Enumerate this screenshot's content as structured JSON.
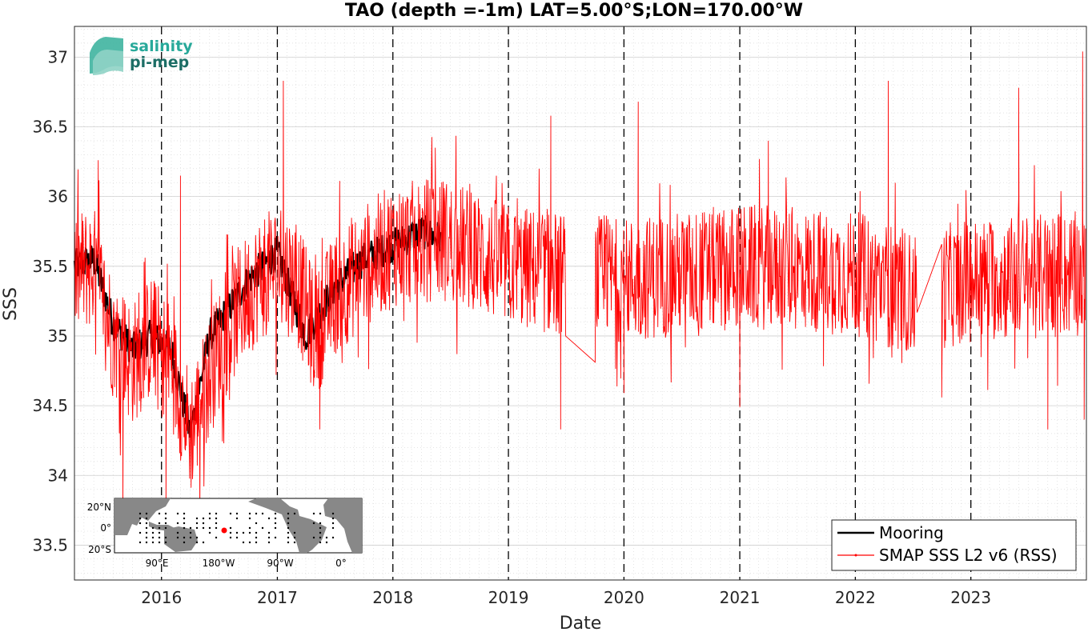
{
  "chart_data": {
    "type": "line",
    "title": "TAO (depth =-1m) LAT=5.00°S;LON=170.00°W",
    "xlabel": "Date",
    "ylabel": "SSS",
    "xlim": [
      "2015-04-01",
      "2024-01-01"
    ],
    "ylim": [
      33.25,
      37.22
    ],
    "x_ticks": [
      "2016",
      "2017",
      "2018",
      "2019",
      "2020",
      "2021",
      "2022",
      "2023"
    ],
    "y_ticks": [
      "33.5",
      "34",
      "34.5",
      "35",
      "35.5",
      "36",
      "36.5",
      "37"
    ],
    "grid": true,
    "year_markers": "dashed vertical lines at each Jan 1",
    "legend_position": "bottom-right",
    "series": [
      {
        "name": "Mooring",
        "color": "#000000",
        "note_points": [
          [
            "2015-04-01",
            35.5
          ],
          [
            "2015-06-01",
            35.55
          ],
          [
            "2015-08-01",
            35.1
          ],
          [
            "2015-10-01",
            34.9
          ],
          [
            "2015-12-01",
            35.0
          ],
          [
            "2016-02-01",
            34.9
          ],
          [
            "2016-04-01",
            34.3
          ],
          [
            "2016-06-01",
            35.0
          ],
          [
            "2016-08-01",
            35.2
          ],
          [
            "2016-10-01",
            35.4
          ],
          [
            "2017-01-01",
            35.6
          ],
          [
            "2017-04-01",
            35.0
          ],
          [
            "2017-07-01",
            35.35
          ],
          [
            "2017-10-01",
            35.55
          ],
          [
            "2018-01-01",
            35.65
          ],
          [
            "2018-04-01",
            35.75
          ],
          [
            "2018-06-01",
            35.7
          ]
        ]
      },
      {
        "name": "SMAP SSS L2 v6 (RSS)",
        "color": "#ff0000",
        "anchor_points": [
          [
            "2015-04-01",
            35.45
          ],
          [
            "2015-06-01",
            35.5
          ],
          [
            "2015-08-01",
            35.0
          ],
          [
            "2015-10-01",
            34.8
          ],
          [
            "2015-12-01",
            35.0
          ],
          [
            "2016-02-01",
            34.8
          ],
          [
            "2016-04-01",
            34.3
          ],
          [
            "2016-05-15",
            34.6
          ],
          [
            "2016-07-01",
            34.9
          ],
          [
            "2016-09-01",
            35.2
          ],
          [
            "2016-11-01",
            35.4
          ],
          [
            "2017-01-01",
            35.5
          ],
          [
            "2017-03-01",
            35.4
          ],
          [
            "2017-05-01",
            35.0
          ],
          [
            "2017-07-01",
            35.3
          ],
          [
            "2017-10-01",
            35.5
          ],
          [
            "2018-01-01",
            35.65
          ],
          [
            "2018-06-01",
            35.7
          ],
          [
            "2019-01-01",
            35.5
          ],
          [
            "2019-06-01",
            35.45
          ],
          [
            "2020-01-01",
            35.4
          ],
          [
            "2021-01-01",
            35.5
          ],
          [
            "2022-01-01",
            35.45
          ],
          [
            "2022-07-01",
            35.3
          ],
          [
            "2023-01-01",
            35.4
          ],
          [
            "2023-12-31",
            35.45
          ]
        ],
        "spikes": [
          [
            "2015-06-15",
            36.26
          ],
          [
            "2015-09-01",
            33.75
          ],
          [
            "2016-01-15",
            33.7
          ],
          [
            "2016-03-01",
            36.15
          ],
          [
            "2016-05-01",
            33.7
          ],
          [
            "2017-01-20",
            36.83
          ],
          [
            "2017-05-15",
            34.33
          ],
          [
            "2018-05-15",
            36.35
          ],
          [
            "2019-05-15",
            36.58
          ],
          [
            "2019-06-15",
            34.33
          ],
          [
            "2020-02-15",
            36.68
          ],
          [
            "2020-01-01",
            34.59
          ],
          [
            "2021-01-01",
            34.49
          ],
          [
            "2021-04-01",
            36.4
          ],
          [
            "2022-04-15",
            36.83
          ],
          [
            "2022-07-01",
            35.02
          ],
          [
            "2022-10-01",
            34.56
          ],
          [
            "2023-06-01",
            36.78
          ],
          [
            "2023-09-01",
            34.33
          ],
          [
            "2023-12-20",
            37.04
          ],
          [
            "2023-12-25",
            34.4
          ]
        ],
        "gaps": [
          [
            "2019-07-01",
            "2019-10-01"
          ],
          [
            "2022-07-15",
            "2022-10-01"
          ]
        ]
      }
    ]
  },
  "logo": {
    "line1": "salinity",
    "line2": "pi-mep"
  },
  "inset_map": {
    "ylabels": [
      "20°N",
      "0°",
      "20°S"
    ],
    "xlabels": [
      "90°E",
      "180°W",
      "90°W",
      "0°"
    ],
    "marker_color": "#ff0000"
  }
}
